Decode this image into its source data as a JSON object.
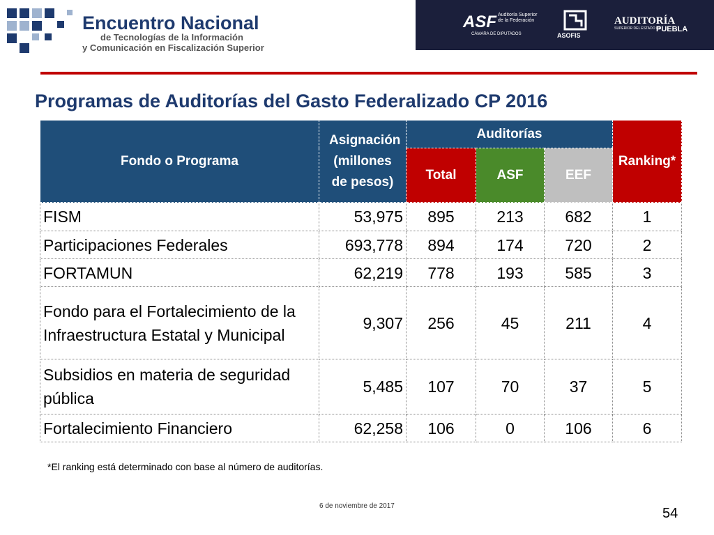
{
  "header": {
    "title": "Encuentro Nacional",
    "subtitle_lines": [
      "de Tecnologías de la Información",
      "y Comunicación en Fiscalización Superior"
    ]
  },
  "logos": {
    "asf": "ASF",
    "asf_name": "Auditoría Superior de la Federación",
    "asf_sub": "CÁMARA DE DIPUTADOS",
    "asofis": "ASOFIS",
    "puebla_top": "AUDITORÍA",
    "puebla_mid": "SUPERIOR DEL ESTADO DE",
    "puebla_bottom": "PUEBLA"
  },
  "slide_title": "Programas de Auditorías del Gasto Federalizado CP 2016",
  "table": {
    "headers": {
      "fondo": "Fondo o Programa",
      "asignacion": "Asignación (millones de pesos)",
      "auditorias": "Auditorías",
      "total": "Total",
      "asf": "ASF",
      "eef": "EEF",
      "ranking": "Ranking*"
    },
    "rows": [
      [
        "FISM",
        "53,975",
        "895",
        "213",
        "682",
        "1"
      ],
      [
        "Participaciones Federales",
        "693,778",
        "894",
        "174",
        "720",
        "2"
      ],
      [
        "FORTAMUN",
        "62,219",
        "778",
        "193",
        "585",
        "3"
      ],
      [
        "Fondo para el Fortalecimiento de la Infraestructura Estatal y Municipal",
        "9,307",
        "256",
        "45",
        "211",
        "4"
      ],
      [
        "Subsidios en materia de seguridad pública",
        "5,485",
        "107",
        "70",
        "37",
        "5"
      ],
      [
        "Fortalecimiento Financiero",
        "62,258",
        "106",
        "0",
        "106",
        "6"
      ]
    ]
  },
  "footnote": "*El ranking está determinado con base al número de auditorías.",
  "date": "6 de noviembre de 2017",
  "page_number": "54"
}
